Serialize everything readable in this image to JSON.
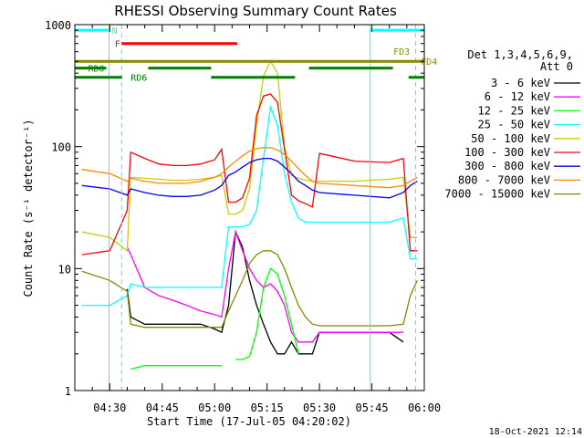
{
  "chart_data": {
    "type": "line",
    "title": "RHESSI Observing Summary Count Rates",
    "xlabel": "Start Time (17-Jul-05 04:20:02)",
    "ylabel": "Count Rate (s⁻¹ detector⁻¹)",
    "yscale": "log",
    "ylim": [
      1,
      1000
    ],
    "xlim": [
      20,
      120
    ],
    "x_units": "minutes after 04:00 UT",
    "yticks": [
      {
        "value": 1,
        "label": "1"
      },
      {
        "value": 10,
        "label": "10"
      },
      {
        "value": 100,
        "label": "100"
      },
      {
        "value": 1000,
        "label": "1000"
      }
    ],
    "xticks": [
      {
        "value": 30,
        "label": "04:30"
      },
      {
        "value": 45,
        "label": "04:45"
      },
      {
        "value": 60,
        "label": "05:00"
      },
      {
        "value": 75,
        "label": "05:15"
      },
      {
        "value": 90,
        "label": "05:30"
      },
      {
        "value": 105,
        "label": "05:45"
      },
      {
        "value": 120,
        "label": "06:00"
      }
    ],
    "legend_header": [
      "Det 1,3,4,5,6,9,",
      "Att 0"
    ],
    "legend_position": "right",
    "timestamp": "18-Oct-2021 12:14",
    "series": [
      {
        "name": "3 - 6 keV",
        "color": "#000000",
        "x": [
          22,
          30,
          35,
          36,
          40,
          44,
          48,
          52,
          56,
          60,
          62,
          64,
          66,
          68,
          70,
          72,
          74,
          76,
          78,
          80,
          82,
          84,
          86,
          88,
          90,
          100,
          110,
          114,
          116,
          118
        ],
        "y": [
          null,
          null,
          6.8,
          4.0,
          3.5,
          3.5,
          3.5,
          3.5,
          3.5,
          3.2,
          3.0,
          5.0,
          20.0,
          15.0,
          8.0,
          5.0,
          3.5,
          2.5,
          2.0,
          2.0,
          2.5,
          2.0,
          2.0,
          2.0,
          3.0,
          3.0,
          3.0,
          2.5,
          null,
          null
        ]
      },
      {
        "name": "6 - 12 keV",
        "color": "#ff00ff",
        "x": [
          22,
          30,
          35,
          36,
          40,
          44,
          48,
          52,
          56,
          60,
          62,
          64,
          66,
          68,
          70,
          72,
          74,
          76,
          78,
          80,
          82,
          84,
          86,
          88,
          90,
          100,
          110,
          114,
          116,
          118
        ],
        "y": [
          null,
          null,
          15.0,
          13.0,
          7.0,
          6.0,
          5.5,
          5.0,
          4.5,
          4.2,
          4.0,
          10.0,
          20.0,
          14.0,
          10.0,
          8.0,
          7.0,
          7.5,
          6.5,
          5.0,
          3.0,
          2.5,
          2.5,
          2.5,
          3.0,
          3.0,
          3.0,
          3.0,
          null,
          null
        ]
      },
      {
        "name": "12 - 25 keV",
        "color": "#00ff00",
        "x": [
          22,
          30,
          35,
          36,
          40,
          44,
          48,
          52,
          56,
          60,
          62,
          64,
          66,
          68,
          70,
          72,
          74,
          76,
          78,
          80,
          82,
          84,
          86,
          88,
          90,
          100,
          110,
          114,
          116,
          118
        ],
        "y": [
          null,
          null,
          null,
          1.5,
          1.6,
          1.6,
          1.6,
          1.6,
          1.6,
          1.6,
          1.6,
          null,
          1.8,
          1.8,
          1.9,
          3.0,
          7.0,
          10.0,
          9.0,
          6.0,
          3.5,
          2.0,
          null,
          null,
          null,
          null,
          null,
          null,
          null,
          null
        ]
      },
      {
        "name": "25 - 50 keV",
        "color": "#00ffff",
        "x": [
          22,
          30,
          35,
          36,
          40,
          44,
          48,
          52,
          56,
          60,
          62,
          64,
          66,
          68,
          70,
          72,
          74,
          76,
          78,
          80,
          82,
          84,
          86,
          88,
          90,
          100,
          110,
          114,
          116,
          118
        ],
        "y": [
          5.0,
          5.0,
          6.0,
          7.5,
          7.0,
          7.0,
          7.0,
          7.0,
          7.0,
          7.0,
          7.0,
          22.0,
          22.0,
          22.0,
          23.0,
          30.0,
          80.0,
          210.0,
          150.0,
          60.0,
          35.0,
          26.0,
          24.0,
          24.0,
          24.0,
          24.0,
          24.0,
          26.0,
          12.0,
          12.0
        ]
      },
      {
        "name": "50 - 100 keV",
        "color": "#cccc00",
        "x": [
          22,
          30,
          35,
          36,
          40,
          44,
          48,
          52,
          56,
          60,
          62,
          64,
          66,
          68,
          70,
          72,
          74,
          76,
          78,
          80,
          82,
          84,
          86,
          88,
          90,
          100,
          110,
          114,
          116,
          118
        ],
        "y": [
          20.0,
          18.0,
          14.0,
          56.0,
          55.0,
          54.0,
          53.0,
          53.0,
          54.0,
          56.0,
          58.0,
          28.0,
          28.0,
          30.0,
          45.0,
          150.0,
          380.0,
          500.0,
          400.0,
          100.0,
          58.0,
          55.0,
          53.0,
          52.0,
          52.0,
          52.0,
          54.0,
          56.0,
          18.0,
          18.0
        ]
      },
      {
        "name": "100 - 300 keV",
        "color": "#ff0000",
        "x": [
          22,
          30,
          35,
          36,
          40,
          44,
          48,
          52,
          56,
          60,
          62,
          64,
          66,
          68,
          70,
          72,
          74,
          76,
          78,
          80,
          82,
          84,
          86,
          88,
          90,
          100,
          110,
          114,
          116,
          118
        ],
        "y": [
          13.0,
          14.0,
          30.0,
          90.0,
          80.0,
          72.0,
          70.0,
          70.0,
          72.0,
          78.0,
          95.0,
          35.0,
          35.0,
          38.0,
          55.0,
          180.0,
          260.0,
          270.0,
          230.0,
          95.0,
          40.0,
          36.0,
          34.0,
          32.0,
          88.0,
          76.0,
          74.0,
          80.0,
          14.0,
          14.0
        ]
      },
      {
        "name": "300 - 800 keV",
        "color": "#0000ff",
        "x": [
          22,
          30,
          35,
          36,
          40,
          44,
          48,
          52,
          56,
          60,
          62,
          64,
          66,
          68,
          70,
          72,
          74,
          76,
          78,
          80,
          82,
          84,
          86,
          88,
          90,
          100,
          110,
          114,
          116,
          118
        ],
        "y": [
          48.0,
          45.0,
          40.0,
          45.0,
          42.0,
          40.0,
          39.0,
          39.0,
          40.0,
          44.0,
          48.0,
          58.0,
          62.0,
          68.0,
          74.0,
          78.0,
          80.0,
          80.0,
          76.0,
          68.0,
          60.0,
          52.0,
          48.0,
          44.0,
          42.0,
          40.0,
          38.0,
          42.0,
          48.0,
          52.0
        ]
      },
      {
        "name": "800 - 7000 keV",
        "color": "#ff8800",
        "x": [
          22,
          30,
          35,
          36,
          40,
          44,
          48,
          52,
          56,
          60,
          62,
          64,
          66,
          68,
          70,
          72,
          74,
          76,
          78,
          80,
          82,
          84,
          86,
          88,
          90,
          100,
          110,
          114,
          116,
          118
        ],
        "y": [
          65.0,
          60.0,
          52.0,
          55.0,
          52.0,
          50.0,
          50.0,
          50.0,
          52.0,
          56.0,
          60.0,
          68.0,
          76.0,
          84.0,
          92.0,
          96.0,
          98.0,
          98.0,
          94.0,
          86.0,
          76.0,
          66.0,
          58.0,
          52.0,
          50.0,
          48.0,
          46.0,
          48.0,
          52.0,
          56.0
        ]
      },
      {
        "name": "7000 - 15000 keV",
        "color": "#888800",
        "x": [
          22,
          30,
          35,
          36,
          40,
          44,
          48,
          52,
          56,
          60,
          62,
          64,
          66,
          68,
          70,
          72,
          74,
          76,
          78,
          80,
          82,
          84,
          86,
          88,
          90,
          100,
          110,
          114,
          116,
          118
        ],
        "y": [
          9.5,
          8.0,
          6.5,
          3.5,
          3.3,
          3.3,
          3.3,
          3.3,
          3.3,
          3.3,
          3.3,
          4.5,
          6.0,
          8.0,
          11.0,
          13.0,
          14.0,
          14.0,
          13.0,
          10.0,
          7.0,
          5.0,
          4.0,
          3.5,
          3.4,
          3.4,
          3.4,
          3.5,
          6.0,
          8.0
        ]
      }
    ],
    "annotations": [
      {
        "label": "N",
        "color": "#00ffff",
        "y": 900,
        "segments": [
          [
            20,
            29.8
          ],
          [
            104.5,
            120
          ]
        ]
      },
      {
        "label": "F",
        "color": "#ff0000",
        "y": 700,
        "segments": [
          [
            33.4,
            66.5
          ]
        ]
      },
      {
        "label": "FD3",
        "color": "#888800",
        "y": 500,
        "segments": [
          [
            20,
            120
          ]
        ]
      },
      {
        "label": "FD4",
        "color": "#888800",
        "y": 500,
        "segments": []
      },
      {
        "label": "RD0",
        "color": "#008000",
        "y": 440,
        "segments": [
          [
            20,
            29
          ],
          [
            41,
            59
          ],
          [
            87,
            111
          ]
        ]
      },
      {
        "label": "RD6",
        "color": "#008000",
        "y": 370,
        "segments": [
          [
            20,
            33.5
          ],
          [
            59,
            83
          ],
          [
            115.5,
            120
          ]
        ]
      }
    ],
    "vertical_lines": [
      {
        "x": 29.8,
        "color": "#00ffff",
        "style": "solid"
      },
      {
        "x": 33.4,
        "color": "#00ffff",
        "style": "dashed"
      },
      {
        "x": 104.5,
        "color": "#00ffff",
        "style": "solid"
      },
      {
        "x": 117.5,
        "color": "#00ffff",
        "style": "dashed"
      }
    ]
  }
}
